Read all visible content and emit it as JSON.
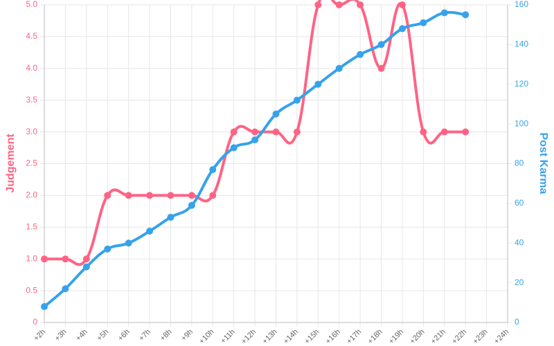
{
  "chart_data": {
    "type": "line",
    "categories": [
      "+2h",
      "+3h",
      "+4h",
      "+5h",
      "+6h",
      "+7h",
      "+8h",
      "+9h",
      "+10h",
      "+11h",
      "+12h",
      "+13h",
      "+14h",
      "+15h",
      "+16h",
      "+17h",
      "+18h",
      "+19h",
      "+20h",
      "+21h",
      "+22h",
      "+23h",
      "+24h"
    ],
    "series": [
      {
        "name": "Judgement",
        "color": "#ff6384",
        "axis": "y",
        "values": [
          1,
          1,
          1,
          2,
          2,
          2,
          2,
          2,
          2,
          3,
          3,
          3,
          3,
          5,
          5,
          5,
          4,
          5,
          3,
          3,
          3,
          null,
          null
        ]
      },
      {
        "name": "Post Karma",
        "color": "#36a2eb",
        "axis": "y2",
        "values": [
          8,
          17,
          28,
          37,
          40,
          46,
          53,
          59,
          77,
          88,
          92,
          105,
          112,
          120,
          128,
          135,
          140,
          148,
          151,
          156,
          155,
          null,
          null
        ]
      }
    ],
    "y_label": "Judgement",
    "y2_label": "Post Karma",
    "ylim": [
      0,
      5
    ],
    "yticks": [
      0,
      0.5,
      {
        "value": 1,
        "label": "1.0"
      },
      1.5,
      {
        "value": 2,
        "label": "2.0"
      },
      2.5,
      {
        "value": 3,
        "label": "3.0"
      },
      3.5,
      {
        "value": 4,
        "label": "4.0"
      },
      4.5,
      {
        "value": 5,
        "label": "5.0"
      }
    ],
    "y2lim": [
      0,
      160
    ],
    "y2ticks": [
      0,
      20,
      40,
      60,
      80,
      100,
      120,
      140,
      160
    ],
    "grid": true
  }
}
